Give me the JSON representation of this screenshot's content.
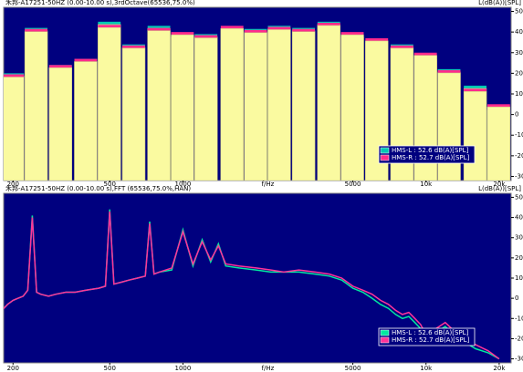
{
  "chart_data": [
    {
      "type": "bar",
      "title": "禾邦-A17251-50HZ (0.00-10.00 s),3rdOctave(65536,75.0%)",
      "x_label": "f/Hz",
      "y_label": "L(dB(A))[SPL]",
      "x": [
        200,
        250,
        315,
        400,
        500,
        630,
        800,
        1000,
        1250,
        1600,
        2000,
        2500,
        3150,
        4000,
        5000,
        6300,
        8000,
        10000,
        12500,
        16000,
        20000
      ],
      "series": [
        {
          "name": "HMS-L : 52.6 dB(A)[SPL]",
          "color": "#00c8b4",
          "values": [
            20,
            42,
            24,
            27,
            45,
            34,
            43,
            39,
            39,
            42,
            41.5,
            43,
            42,
            45,
            39,
            36,
            34,
            28,
            22,
            14,
            3.5
          ]
        },
        {
          "name": "HMS-R : 52.7 dB(A)[SPL]",
          "color": "#ff2a8c",
          "values": [
            19.5,
            41.5,
            24,
            27,
            43.5,
            33.5,
            42,
            40,
            38.5,
            43,
            41,
            42.5,
            41.5,
            44.5,
            40,
            37,
            33.5,
            30,
            21.5,
            12.5,
            5
          ]
        }
      ],
      "bar_color": "#fafaa0",
      "background": "#00007f",
      "xscale": "log",
      "xlim": [
        183,
        22400
      ],
      "ylim": [
        -32,
        52
      ],
      "xticks": [
        200,
        500,
        1000,
        5000,
        {
          "value": 10000,
          "label": "10k"
        },
        {
          "value": 20000,
          "label": "20k"
        }
      ],
      "yticks": [
        -30,
        -20,
        -10,
        0,
        10,
        20,
        30,
        40,
        50
      ],
      "legend": "lower right"
    },
    {
      "type": "line",
      "title": "禾邦-A17251-50HZ (0.00-10.00 s),FFT (65536,75.0%,HAN)",
      "x_label": "f/Hz",
      "y_label": "L(dB(A))[SPL]",
      "x": [
        180,
        190,
        200,
        210,
        220,
        230,
        240,
        250,
        260,
        280,
        300,
        330,
        360,
        400,
        450,
        480,
        500,
        520,
        560,
        600,
        650,
        700,
        730,
        760,
        800,
        900,
        1000,
        1100,
        1200,
        1300,
        1400,
        1500,
        1700,
        2000,
        2300,
        2600,
        3000,
        3500,
        4000,
        4500,
        5000,
        5500,
        6000,
        6500,
        7000,
        7500,
        8000,
        8500,
        9000,
        9500,
        10000,
        11000,
        12000,
        13000,
        14000,
        15000,
        16000,
        18000,
        20000
      ],
      "series": [
        {
          "name": "HMS-L : 52.6 dB(A)[SPL]",
          "color": "#00e8a0",
          "values": [
            -6,
            -3,
            -1,
            0,
            1,
            4,
            41,
            3,
            2,
            1,
            2,
            3,
            3,
            4,
            5,
            6,
            44,
            7,
            8,
            9,
            10,
            11,
            38,
            12,
            13,
            14,
            34,
            16,
            29,
            18,
            27,
            16,
            15,
            14,
            13,
            13,
            13,
            12,
            11,
            9,
            5,
            3,
            0,
            -3,
            -5,
            -8,
            -10,
            -9,
            -12,
            -15,
            -20,
            -17,
            -14,
            -18,
            -21,
            -23,
            -25,
            -27,
            -30
          ]
        },
        {
          "name": "HMS-R : 52.7 dB(A)[SPL]",
          "color": "#ff3399",
          "values": [
            -6,
            -3,
            -1,
            0,
            1,
            4,
            40,
            3,
            2,
            1,
            2,
            3,
            3,
            4,
            5,
            6,
            43,
            7,
            8,
            9,
            10,
            11,
            37,
            12,
            13,
            15,
            33,
            17,
            28,
            19,
            26,
            17,
            16,
            15,
            14,
            13,
            14,
            13,
            12,
            10,
            6,
            4,
            2,
            -1,
            -3,
            -6,
            -8,
            -7,
            -10,
            -13,
            -18,
            -15,
            -12,
            -16,
            -19,
            -21,
            -23,
            -26,
            -30
          ]
        }
      ],
      "background": "#00007f",
      "xscale": "log",
      "xlim": [
        183,
        22400
      ],
      "ylim": [
        -32,
        52
      ],
      "xticks": [
        200,
        500,
        1000,
        5000,
        {
          "value": 10000,
          "label": "10k"
        },
        {
          "value": 20000,
          "label": "20k"
        }
      ],
      "yticks": [
        -30,
        -20,
        -10,
        0,
        10,
        20,
        30,
        40,
        50
      ],
      "legend": "lower right"
    }
  ]
}
